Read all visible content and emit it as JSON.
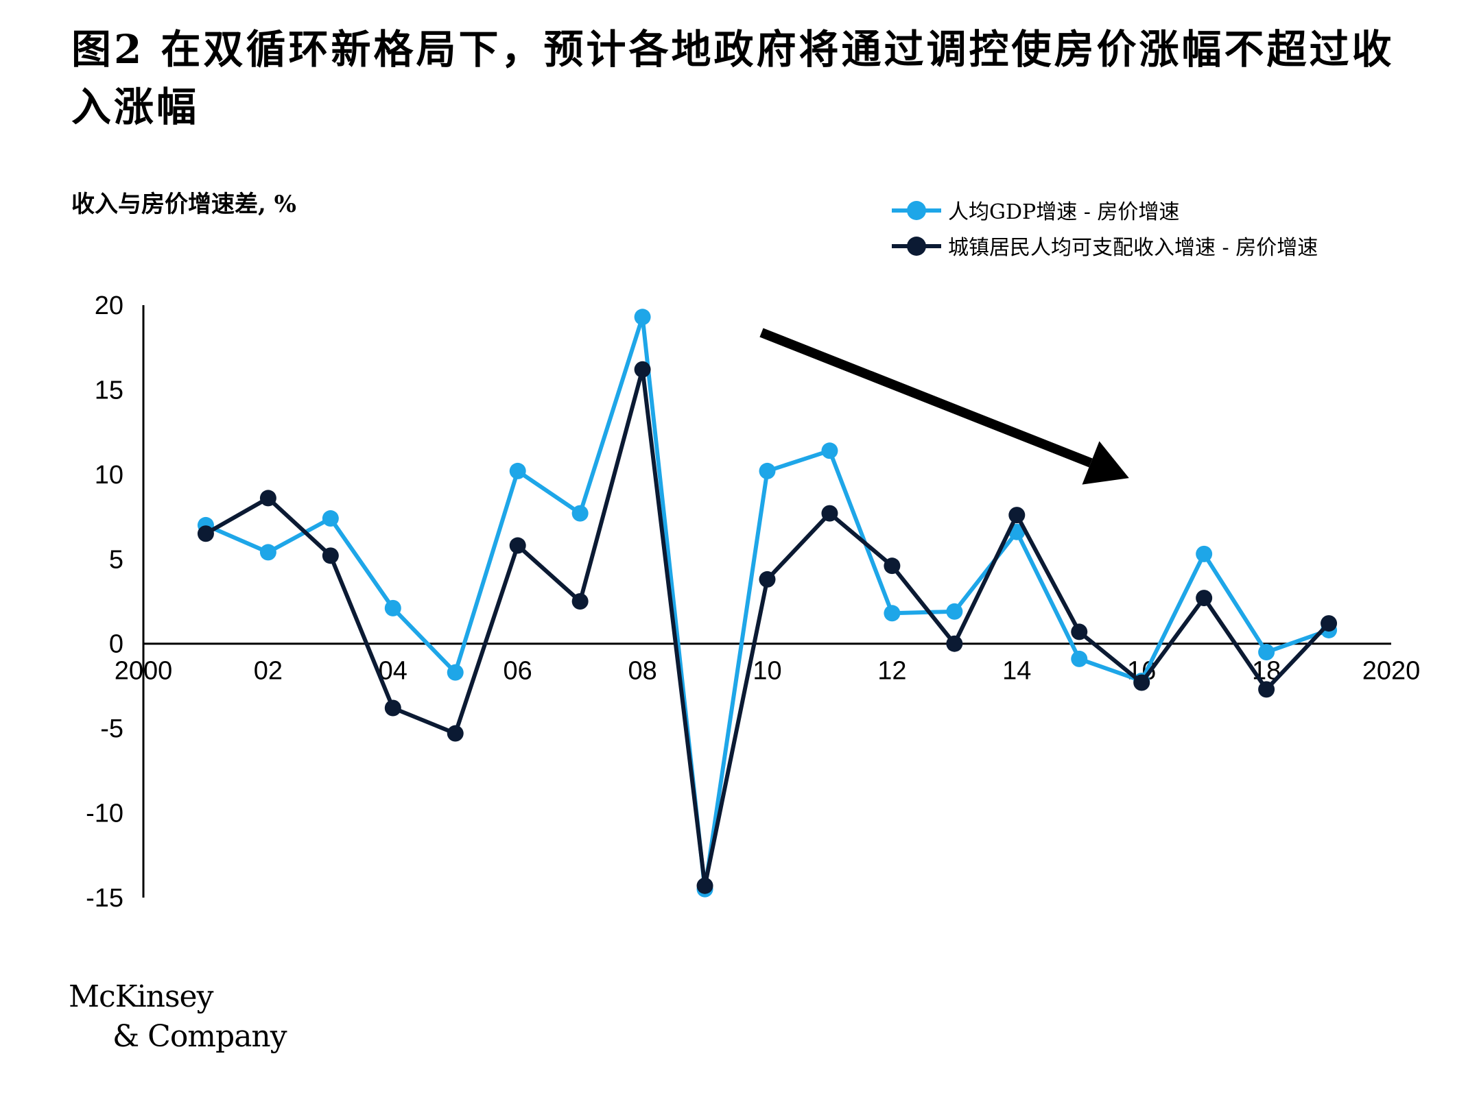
{
  "title": "图2 在双循环新格局下，预计各地政府将通过调控使房价涨幅不超过收入涨幅",
  "brand": {
    "line1": "McKinsey",
    "line2": "& Company"
  },
  "chart_data": {
    "type": "line",
    "ylabel": "收入与房价增速差, %",
    "ylim": [
      -15,
      20
    ],
    "yticks": [
      "20",
      "15",
      "10",
      "5",
      "0",
      "-5",
      "-10",
      "-15"
    ],
    "ytick_values": [
      20,
      15,
      10,
      5,
      0,
      -5,
      -10,
      -15
    ],
    "xticks": [
      "2000",
      "02",
      "04",
      "06",
      "08",
      "10",
      "12",
      "14",
      "16",
      "18",
      "2020"
    ],
    "xtick_values": [
      2000,
      2002,
      2004,
      2006,
      2008,
      2010,
      2012,
      2014,
      2016,
      2018,
      2020
    ],
    "xlim": [
      2000,
      2020
    ],
    "x": [
      2001,
      2002,
      2003,
      2004,
      2005,
      2006,
      2007,
      2008,
      2009,
      2010,
      2011,
      2012,
      2013,
      2014,
      2015,
      2016,
      2017,
      2018,
      2019
    ],
    "series": [
      {
        "name": "人均GDP增速 - 房价增速",
        "color": "#1ea6e8",
        "values": [
          7.0,
          5.4,
          7.4,
          2.1,
          -1.7,
          10.2,
          7.7,
          19.3,
          -14.5,
          10.2,
          11.4,
          1.8,
          1.9,
          6.6,
          -0.9,
          -2.2,
          5.3,
          -0.5,
          0.8
        ]
      },
      {
        "name": "城镇居民人均可支配收入增速 - 房价增速",
        "color": "#0b1a33",
        "values": [
          6.5,
          8.6,
          5.2,
          -3.8,
          -5.3,
          5.8,
          2.5,
          16.2,
          -14.3,
          3.8,
          7.7,
          4.6,
          0.0,
          7.6,
          0.7,
          -2.3,
          2.7,
          -2.7,
          1.2
        ]
      }
    ],
    "annotations": [
      {
        "type": "arrow",
        "direction": "down-right"
      }
    ],
    "legend_position": "top-right",
    "grid": false
  }
}
